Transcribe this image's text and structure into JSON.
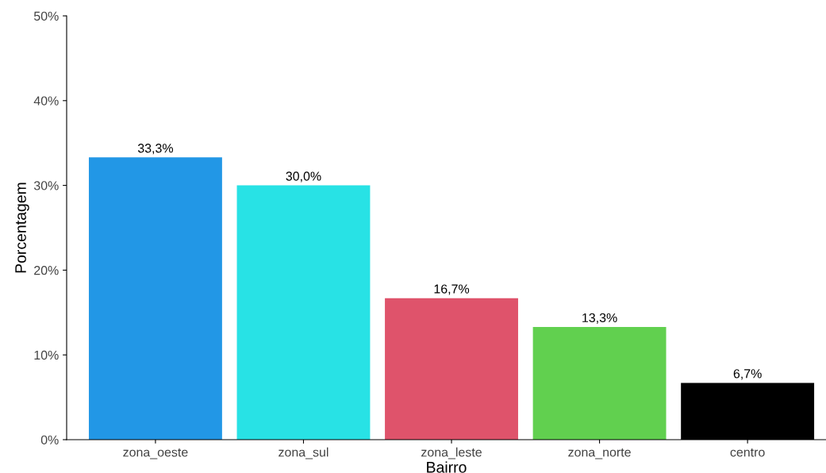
{
  "chart_data": {
    "type": "bar",
    "xlabel": "Bairro",
    "ylabel": "Porcentagem",
    "categories": [
      "zona_oeste",
      "zona_sul",
      "zona_leste",
      "zona_norte",
      "centro"
    ],
    "values": [
      33.3,
      30.0,
      16.7,
      13.3,
      6.7
    ],
    "colors": [
      "#2297e6",
      "#28e2e5",
      "#df536b",
      "#61d04f",
      "#000000"
    ],
    "value_labels": [
      "33,3%",
      "30,0%",
      "16,7%",
      "13,3%",
      "6,7%"
    ],
    "ylim": [
      0,
      50
    ],
    "yticks": [
      {
        "value": 0,
        "label": "0%"
      },
      {
        "value": 10,
        "label": "10%"
      },
      {
        "value": 20,
        "label": "20%"
      },
      {
        "value": 30,
        "label": "30%"
      },
      {
        "value": 40,
        "label": "40%"
      },
      {
        "value": 50,
        "label": "50%"
      }
    ],
    "grid": false,
    "legend": false
  }
}
